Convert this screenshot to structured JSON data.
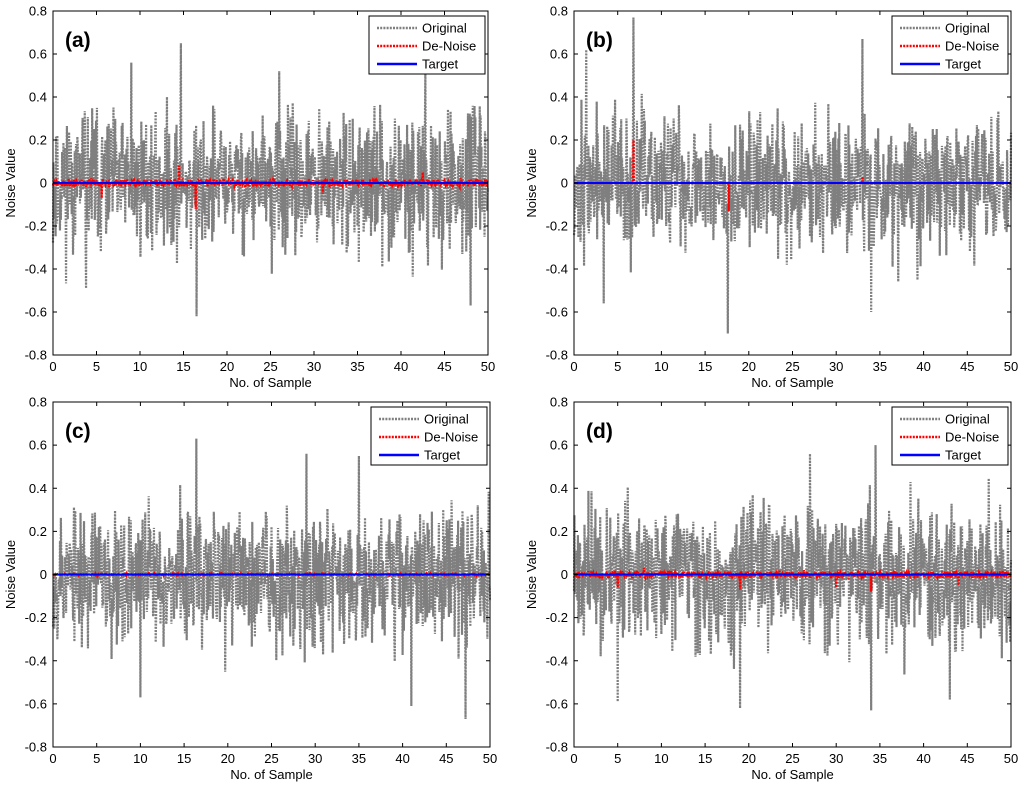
{
  "figure": {
    "colors": {
      "original": "#7f7f7f",
      "denoise": "#ff0000",
      "target": "#0000ff",
      "axis": "#000000",
      "background": "#ffffff"
    },
    "icons": {
      "original_line": "gray-dotted-line-icon",
      "denoise_line": "red-dotted-line-icon",
      "target_line": "blue-solid-line-icon"
    }
  },
  "chart_data": [
    {
      "type": "line",
      "panel_label": "(a)",
      "xlabel": "No. of Sample",
      "ylabel": "Noise Value",
      "xlim": [
        0,
        50
      ],
      "ylim": [
        -0.8,
        0.8
      ],
      "xticks": [
        "0",
        "5",
        "10",
        "15",
        "20",
        "25",
        "30",
        "35",
        "40",
        "45",
        "50"
      ],
      "yticks": [
        "-0.8",
        "-0.6",
        "-0.4",
        "-0.2",
        "0",
        "0.2",
        "0.4",
        "0.6",
        "0.8"
      ],
      "legend": [
        "Original",
        "De-Noise",
        "Target"
      ],
      "legend_position": "top-right",
      "grid": false,
      "series": [
        {
          "name": "Original",
          "style": "dotted",
          "n_samples": 50,
          "amplitude": 0.35,
          "seed": 11,
          "peaks": [
            [
              14.7,
              0.65
            ],
            [
              16.5,
              -0.62
            ],
            [
              3.8,
              -0.49
            ],
            [
              9.0,
              0.56
            ],
            [
              26.0,
              0.52
            ],
            [
              42.8,
              0.52
            ],
            [
              48.0,
              -0.57
            ]
          ]
        },
        {
          "name": "De-Noise",
          "style": "dotted",
          "n_samples": 50,
          "amplitude": 0.018,
          "seed": 21,
          "peaks": [
            [
              14.5,
              0.08
            ],
            [
              16.4,
              -0.12
            ],
            [
              5.6,
              -0.07
            ],
            [
              42.5,
              0.05
            ],
            [
              31.0,
              -0.05
            ]
          ]
        },
        {
          "name": "Target",
          "style": "solid",
          "constant": 0
        }
      ]
    },
    {
      "type": "line",
      "panel_label": "(b)",
      "xlabel": "No. of Sample",
      "ylabel": "Noise Value",
      "xlim": [
        0,
        50
      ],
      "ylim": [
        -0.8,
        0.8
      ],
      "xticks": [
        "0",
        "5",
        "10",
        "15",
        "20",
        "25",
        "30",
        "35",
        "40",
        "45",
        "50"
      ],
      "yticks": [
        "-0.8",
        "-0.6",
        "-0.4",
        "-0.2",
        "0",
        "0.2",
        "0.4",
        "0.6",
        "0.8"
      ],
      "legend": [
        "Original",
        "De-Noise",
        "Target"
      ],
      "legend_position": "top-right",
      "grid": false,
      "series": [
        {
          "name": "Original",
          "style": "dotted",
          "n_samples": 50,
          "amplitude": 0.35,
          "seed": 37,
          "peaks": [
            [
              6.8,
              0.77
            ],
            [
              17.6,
              -0.7
            ],
            [
              1.4,
              0.62
            ],
            [
              33.0,
              0.67
            ],
            [
              34.0,
              -0.6
            ],
            [
              3.4,
              -0.56
            ]
          ]
        },
        {
          "name": "De-Noise",
          "style": "dotted",
          "n_samples": 50,
          "amplitude": 0.0,
          "seed": 41,
          "peaks": [
            [
              6.8,
              0.2
            ],
            [
              17.7,
              -0.13
            ],
            [
              33.0,
              0.03
            ]
          ]
        },
        {
          "name": "Target",
          "style": "solid",
          "constant": 0
        }
      ]
    },
    {
      "type": "line",
      "panel_label": "(c)",
      "xlabel": "No. of Sample",
      "ylabel": "Noise Value",
      "xlim": [
        0,
        50
      ],
      "ylim": [
        -0.8,
        0.8
      ],
      "xticks": [
        "0",
        "5",
        "10",
        "15",
        "20",
        "25",
        "30",
        "35",
        "40",
        "45",
        "50"
      ],
      "yticks": [
        "-0.8",
        "-0.6",
        "-0.4",
        "-0.2",
        "0",
        "0.2",
        "0.4",
        "0.6",
        "0.8"
      ],
      "legend": [
        "Original",
        "De-Noise",
        "Target"
      ],
      "legend_position": "top-right",
      "grid": false,
      "series": [
        {
          "name": "Original",
          "style": "dotted",
          "n_samples": 50,
          "amplitude": 0.35,
          "seed": 53,
          "peaks": [
            [
              16.4,
              0.63
            ],
            [
              47.2,
              -0.67
            ],
            [
              10.0,
              -0.57
            ],
            [
              41.0,
              -0.61
            ],
            [
              35.0,
              0.55
            ],
            [
              29.0,
              0.56
            ]
          ]
        },
        {
          "name": "De-Noise",
          "style": "dotted",
          "n_samples": 50,
          "amplitude": 0.004,
          "seed": 61,
          "peaks": [
            [
              40.0,
              -0.01
            ],
            [
              38.5,
              -0.01
            ],
            [
              11.0,
              0.01
            ]
          ]
        },
        {
          "name": "Target",
          "style": "solid",
          "constant": 0
        }
      ]
    },
    {
      "type": "line",
      "panel_label": "(d)",
      "xlabel": "No. of Sample",
      "ylabel": "Noise Value",
      "xlim": [
        0,
        50
      ],
      "ylim": [
        -0.8,
        0.8
      ],
      "xticks": [
        "0",
        "5",
        "10",
        "15",
        "20",
        "25",
        "30",
        "35",
        "40",
        "45",
        "50"
      ],
      "yticks": [
        "-0.8",
        "-0.6",
        "-0.4",
        "-0.2",
        "0",
        "0.2",
        "0.4",
        "0.6",
        "0.8"
      ],
      "legend": [
        "Original",
        "De-Noise",
        "Target"
      ],
      "legend_position": "top-right",
      "grid": false,
      "series": [
        {
          "name": "Original",
          "style": "dotted",
          "n_samples": 50,
          "amplitude": 0.35,
          "seed": 71,
          "peaks": [
            [
              34.5,
              0.6
            ],
            [
              19.0,
              -0.62
            ],
            [
              34.0,
              -0.63
            ],
            [
              5.0,
              -0.59
            ],
            [
              43.0,
              -0.58
            ],
            [
              27.0,
              0.56
            ]
          ]
        },
        {
          "name": "De-Noise",
          "style": "dotted",
          "n_samples": 50,
          "amplitude": 0.016,
          "seed": 83,
          "peaks": [
            [
              19.0,
              -0.07
            ],
            [
              34.0,
              -0.08
            ],
            [
              5.0,
              -0.06
            ],
            [
              30.0,
              -0.06
            ],
            [
              8.0,
              0.03
            ],
            [
              44.0,
              -0.05
            ]
          ]
        },
        {
          "name": "Target",
          "style": "solid",
          "constant": 0
        }
      ]
    }
  ]
}
